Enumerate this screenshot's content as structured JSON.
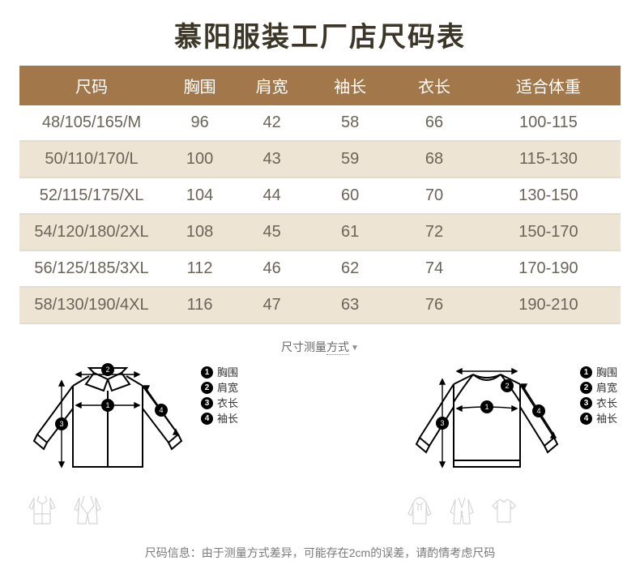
{
  "title": "慕阳服装工厂店尺码表",
  "table": {
    "columns": [
      "尺码",
      "胸围",
      "肩宽",
      "袖长",
      "衣长",
      "适合体重"
    ],
    "rows": [
      [
        "48/105/165/M",
        "96",
        "42",
        "58",
        "66",
        "100-115"
      ],
      [
        "50/110/170/L",
        "100",
        "43",
        "59",
        "68",
        "115-130"
      ],
      [
        "52/115/175/XL",
        "104",
        "44",
        "60",
        "70",
        "130-150"
      ],
      [
        "54/120/180/2XL",
        "108",
        "45",
        "61",
        "72",
        "150-170"
      ],
      [
        "56/125/185/3XL",
        "112",
        "46",
        "62",
        "74",
        "170-190"
      ],
      [
        "58/130/190/4XL",
        "116",
        "47",
        "63",
        "76",
        "190-210"
      ]
    ],
    "header_bg": "#a2784a",
    "header_fg": "#ffffff",
    "row_alt_bg": "#eee4d3",
    "row_bg": "#ffffff",
    "border_color": "#e4dccd",
    "text_color": "#6a6458"
  },
  "measure_label": "尺寸测量",
  "measure_label_suffix": "方式",
  "legend": {
    "items": [
      {
        "n": "1",
        "label": "胸围"
      },
      {
        "n": "2",
        "label": "肩宽"
      },
      {
        "n": "3",
        "label": "衣长"
      },
      {
        "n": "4",
        "label": "袖长"
      }
    ]
  },
  "note_prefix": "尺码信息：",
  "note_body": "由于测量方式差异，可能存在2cm的误差，请酌情考虑尺码",
  "colors": {
    "title": "#3c3628",
    "diagram_stroke": "#000000",
    "mini_stroke": "#bcbcbc"
  }
}
